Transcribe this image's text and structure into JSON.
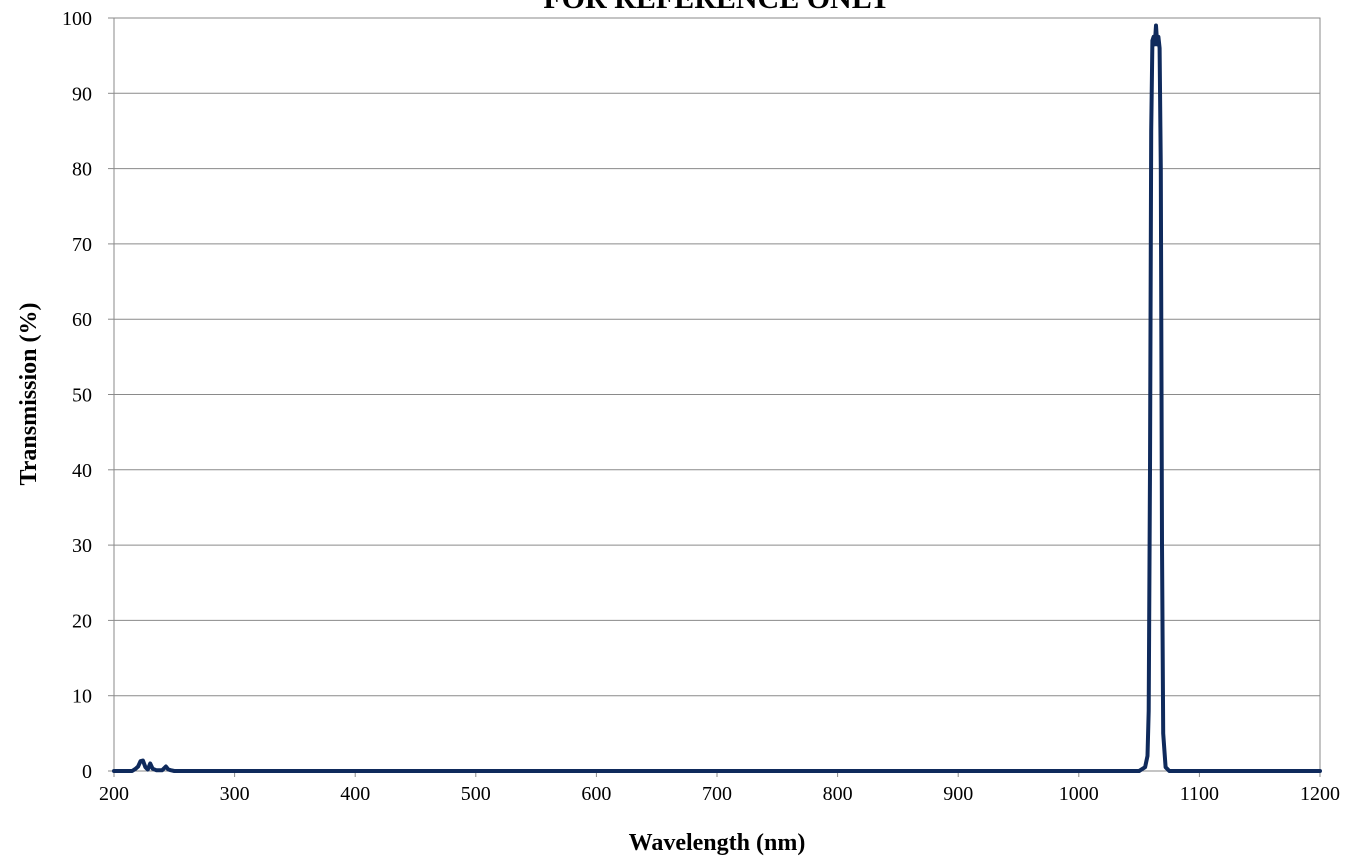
{
  "chart_data": {
    "type": "line",
    "title": "FOR REFERENCE ONLY",
    "xlabel": "Wavelength (nm)",
    "ylabel": "Transmission (%)",
    "xlim": [
      200,
      1200
    ],
    "ylim": [
      0,
      100
    ],
    "xticks": [
      200,
      300,
      400,
      500,
      600,
      700,
      800,
      900,
      1000,
      1100,
      1200
    ],
    "yticks": [
      0,
      10,
      20,
      30,
      40,
      50,
      60,
      70,
      80,
      90,
      100
    ],
    "x_tick_labels": [
      "200",
      "300",
      "400",
      "500",
      "600",
      "700",
      "800",
      "900",
      "1000",
      "1100",
      "1200"
    ],
    "y_tick_labels": [
      "0",
      "10",
      "20",
      "30",
      "40",
      "50",
      "60",
      "70",
      "80",
      "90",
      "100"
    ],
    "grid": "horizontal",
    "legend": "none",
    "line_color": "#0f2a5c",
    "series": [
      {
        "x": [
          200,
          215,
          218,
          220,
          222,
          224,
          226,
          228,
          230,
          232,
          235,
          240,
          243,
          245,
          247,
          250,
          260,
          400,
          600,
          800,
          1000,
          1050,
          1055,
          1057,
          1058,
          1059,
          1060,
          1061,
          1062,
          1063,
          1064,
          1065,
          1066,
          1067,
          1068,
          1069,
          1070,
          1072,
          1075,
          1100,
          1200
        ],
        "y": [
          0,
          0,
          0.3,
          0.6,
          1.3,
          1.4,
          0.5,
          0.2,
          1.0,
          0.3,
          0.1,
          0.1,
          0.6,
          0.2,
          0.1,
          0,
          0,
          0,
          0,
          0,
          0,
          0,
          0.5,
          2.0,
          8.0,
          40.0,
          85.0,
          97.0,
          97.5,
          96.5,
          99.0,
          96.5,
          97.5,
          96.0,
          80.0,
          30.0,
          5.0,
          0.5,
          0,
          0,
          0
        ]
      }
    ]
  }
}
